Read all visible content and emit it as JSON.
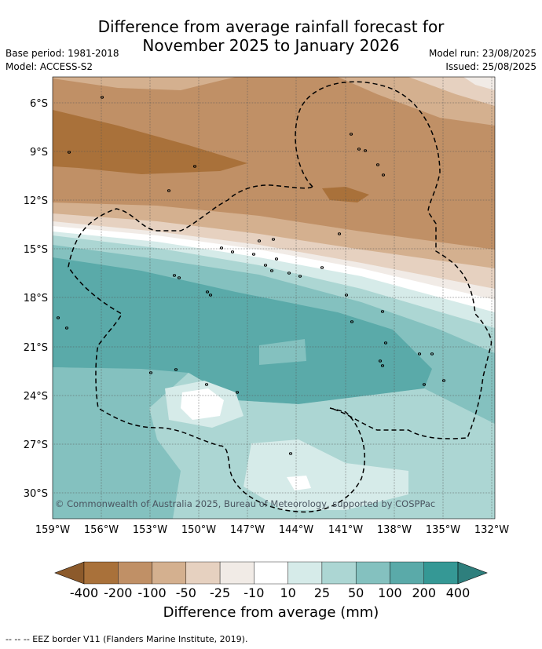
{
  "header": {
    "title_line1": "Difference from average rainfall forecast for",
    "title_line2": "November 2025 to January 2026",
    "base_period": "Base period: 1981-2018",
    "model": "Model: ACCESS-S2",
    "model_run": "Model run: 23/08/2025",
    "issued": "Issued: 25/08/2025"
  },
  "map": {
    "lat_labels": [
      "6°S",
      "9°S",
      "12°S",
      "15°S",
      "18°S",
      "21°S",
      "24°S",
      "27°S",
      "30°S"
    ],
    "lon_labels": [
      "159°W",
      "156°W",
      "153°W",
      "150°W",
      "147°W",
      "144°W",
      "141°W",
      "138°W",
      "135°W",
      "132°W"
    ],
    "copyright": "© Commonwealth of Australia 2025, Bureau of Meteorology, supported by COSPPac",
    "lines": {
      "eez_border": "dashed black",
      "gridlines": "dotted dark grey",
      "coastlines": "black"
    }
  },
  "colorbar": {
    "tick_labels": [
      "-400",
      "-200",
      "-100",
      "-50",
      "-25",
      "-10",
      "10",
      "25",
      "50",
      "100",
      "200",
      "400"
    ],
    "colors": [
      "#a9713a",
      "#c09066",
      "#d4b08f",
      "#e6d1c0",
      "#f1ebe6",
      "#ffffff",
      "#d6ebe9",
      "#acd6d3",
      "#84c1bf",
      "#5aaaa9",
      "#359895"
    ],
    "under_color": "#8c5a2b",
    "over_color": "#2e7f7d",
    "label": "Difference from average (mm)"
  },
  "footer": {
    "legend_text": "--  --  -- EEZ border V11 (Flanders Marine Institute, 2019)."
  }
}
